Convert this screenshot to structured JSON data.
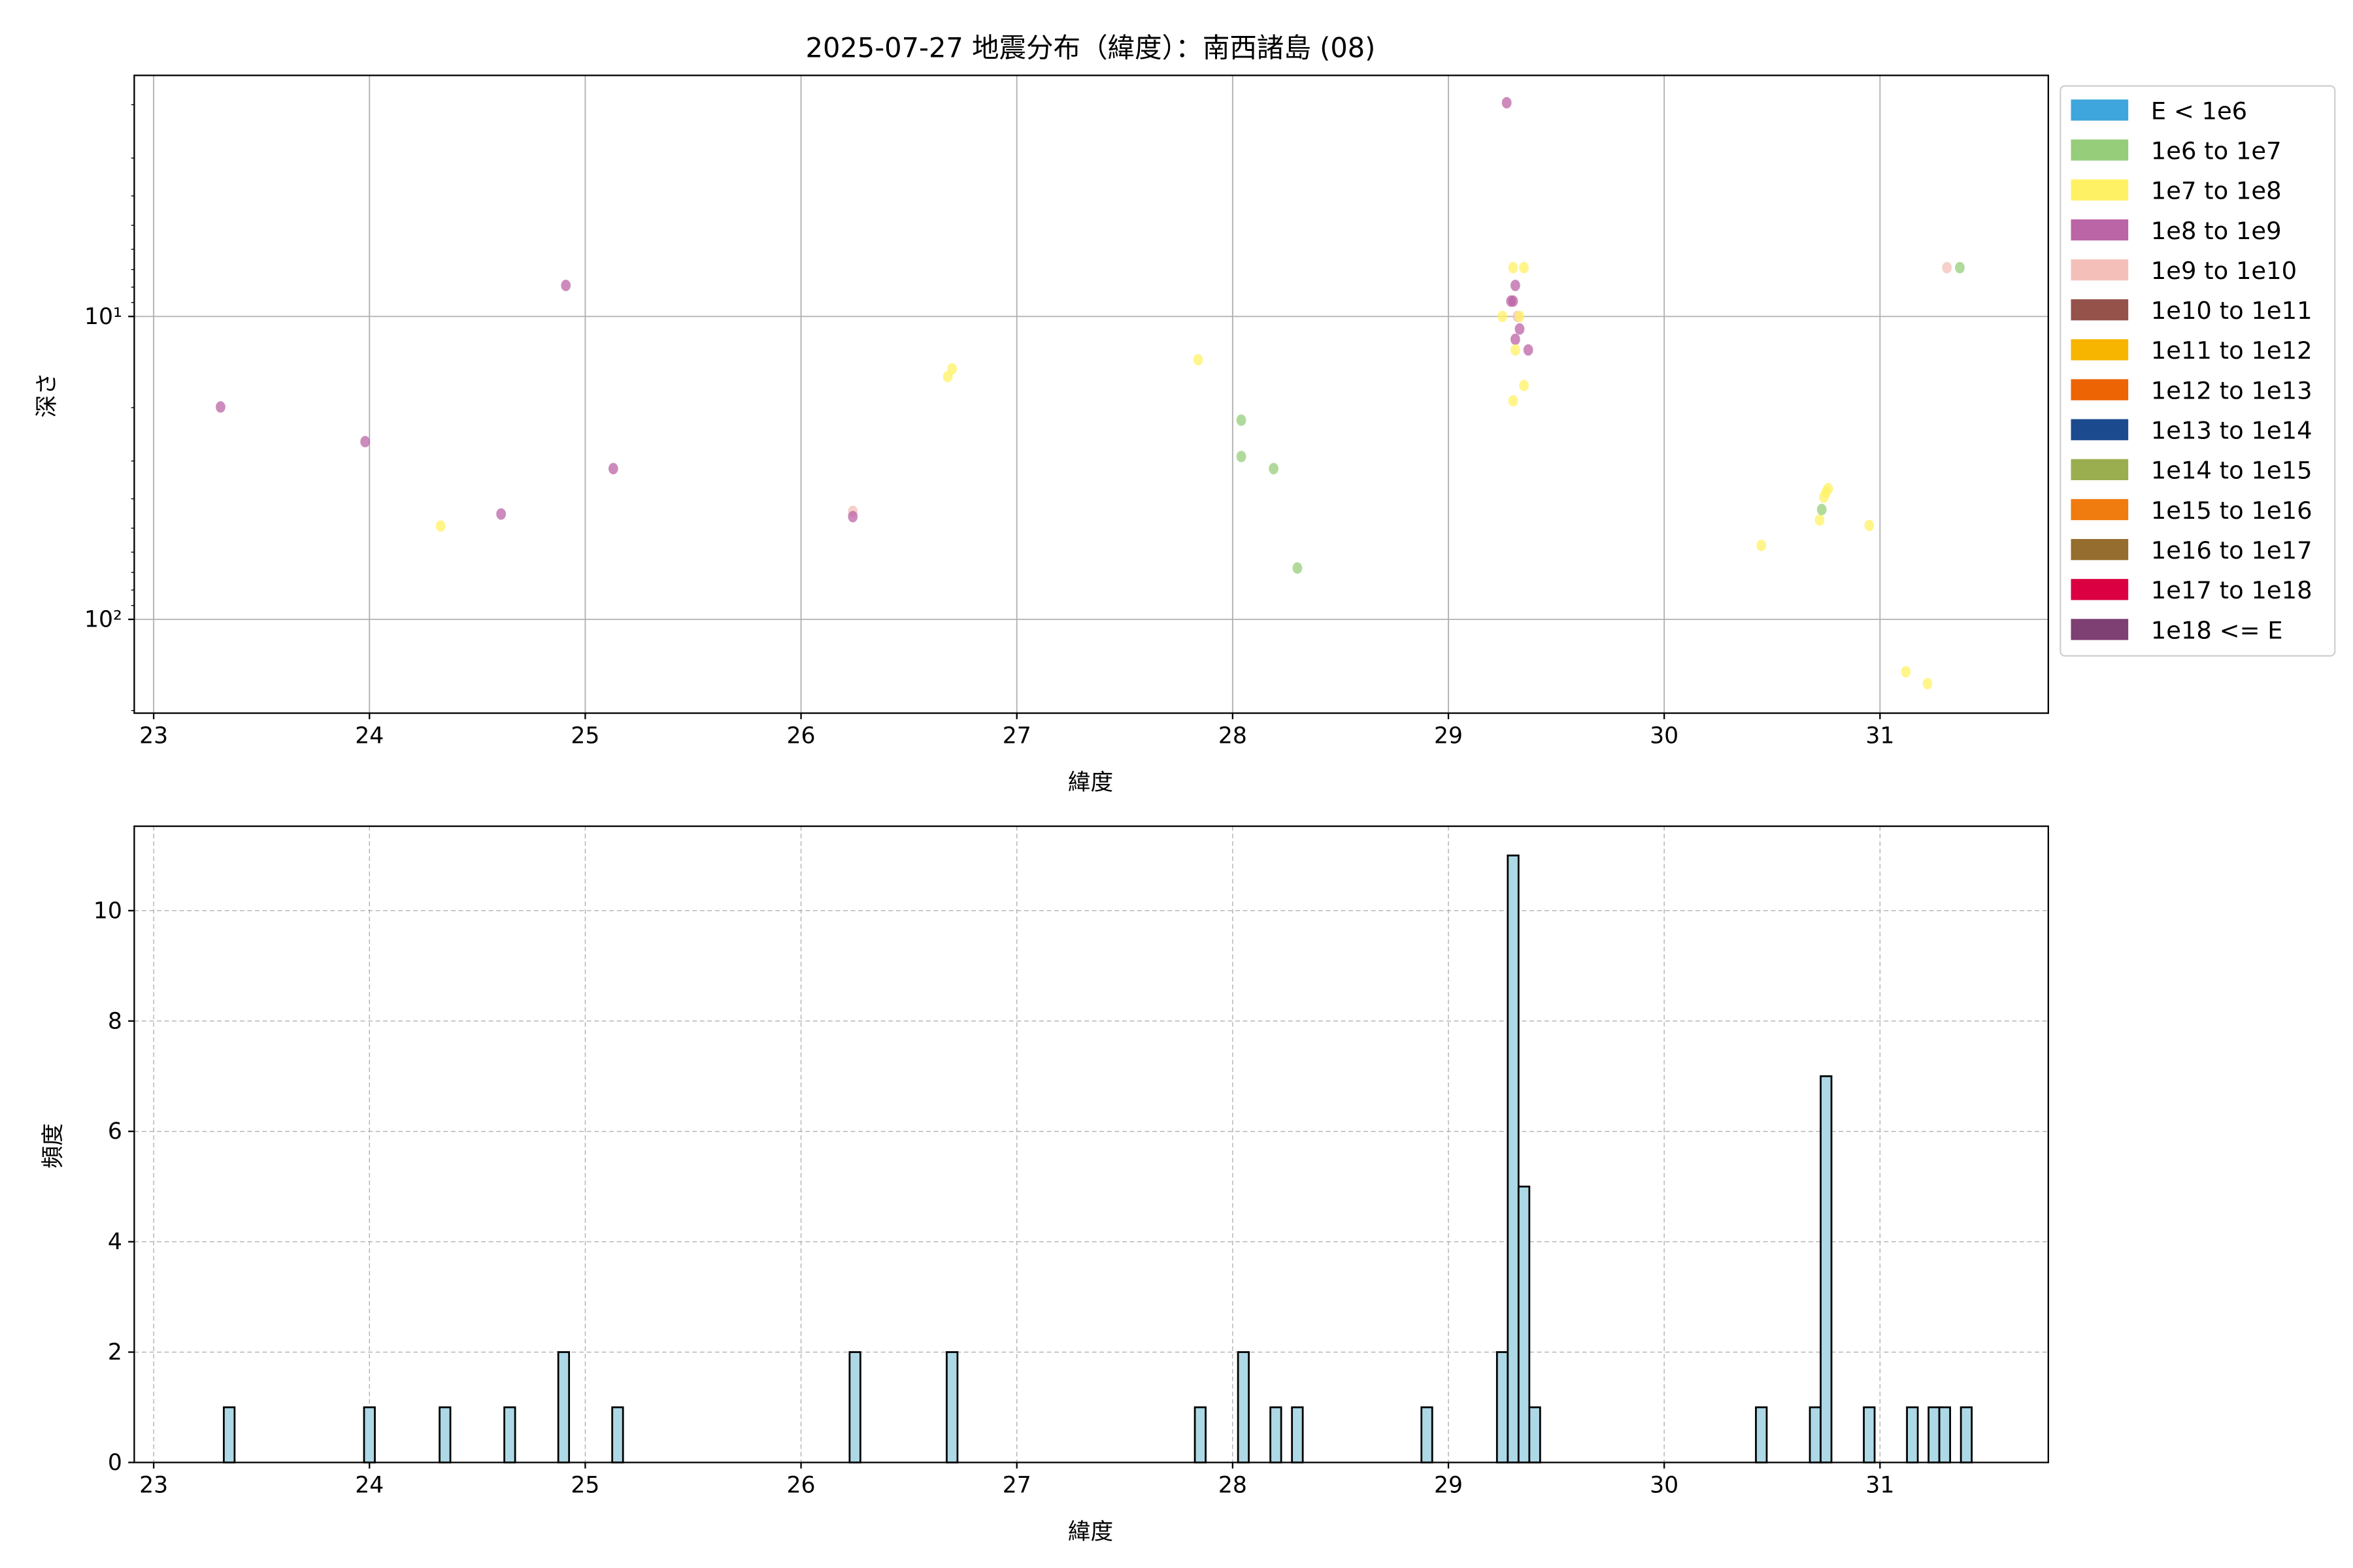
{
  "chart_data": [
    {
      "type": "scatter",
      "title": "2025-07-27 地震分布（緯度）：南西諸島 (08)",
      "xlabel": "緯度",
      "ylabel": "深さ",
      "xlim": [
        22.91,
        31.78
      ],
      "ylim": [
        204,
        1.6
      ],
      "yscale": "log",
      "y_inverted": true,
      "grid": true,
      "x_ticks": [
        23,
        24,
        25,
        26,
        27,
        28,
        29,
        30,
        31
      ],
      "y_ticks": [
        {
          "value": 10,
          "label": "10¹"
        },
        {
          "value": 100,
          "label": "10²"
        }
      ],
      "legend_position": "outside-right",
      "legend": [
        {
          "label": "E < 1e6",
          "color": "#3ea6dc"
        },
        {
          "label": "1e6 to 1e7",
          "color": "#95cd7a"
        },
        {
          "label": "1e7 to 1e8",
          "color": "#fff164"
        },
        {
          "label": "1e8 to 1e9",
          "color": "#bb64a6"
        },
        {
          "label": "1e9 to 1e10",
          "color": "#f4bfb9"
        },
        {
          "label": "1e10 to 1e11",
          "color": "#95524b"
        },
        {
          "label": "1e11 to 1e12",
          "color": "#f7b500"
        },
        {
          "label": "1e12 to 1e13",
          "color": "#ec6404"
        },
        {
          "label": "1e13 to 1e14",
          "color": "#1b4b8e"
        },
        {
          "label": "1e14 to 1e15",
          "color": "#9aae50"
        },
        {
          "label": "1e15 to 1e16",
          "color": "#f07b0f"
        },
        {
          "label": "1e16 to 1e17",
          "color": "#956d2e"
        },
        {
          "label": "1e17 to 1e18",
          "color": "#db0041"
        },
        {
          "label": "1e18 <= E",
          "color": "#7e3f72"
        }
      ],
      "points": [
        {
          "lat": 23.31,
          "depth": 19.9,
          "class": 3
        },
        {
          "lat": 23.98,
          "depth": 25.9,
          "class": 3
        },
        {
          "lat": 24.33,
          "depth": 49.2,
          "class": 2
        },
        {
          "lat": 24.61,
          "depth": 44.9,
          "class": 3
        },
        {
          "lat": 24.91,
          "depth": 7.9,
          "class": 3
        },
        {
          "lat": 25.13,
          "depth": 31.8,
          "class": 3
        },
        {
          "lat": 26.24,
          "depth": 44.0,
          "class": 4
        },
        {
          "lat": 26.24,
          "depth": 45.8,
          "class": 3
        },
        {
          "lat": 26.68,
          "depth": 15.8,
          "class": 2
        },
        {
          "lat": 26.7,
          "depth": 14.9,
          "class": 2
        },
        {
          "lat": 27.84,
          "depth": 13.9,
          "class": 2
        },
        {
          "lat": 28.04,
          "depth": 22.0,
          "class": 1
        },
        {
          "lat": 28.04,
          "depth": 29.0,
          "class": 1
        },
        {
          "lat": 28.19,
          "depth": 31.8,
          "class": 1
        },
        {
          "lat": 28.3,
          "depth": 67.7,
          "class": 1
        },
        {
          "lat": 29.27,
          "depth": 1.97,
          "class": 3
        },
        {
          "lat": 29.3,
          "depth": 6.9,
          "class": 2
        },
        {
          "lat": 29.35,
          "depth": 6.9,
          "class": 2
        },
        {
          "lat": 29.31,
          "depth": 7.9,
          "class": 3
        },
        {
          "lat": 29.29,
          "depth": 8.9,
          "class": 3
        },
        {
          "lat": 29.3,
          "depth": 8.9,
          "class": 3
        },
        {
          "lat": 29.25,
          "depth": 10.0,
          "class": 2
        },
        {
          "lat": 29.32,
          "depth": 10.0,
          "class": 4
        },
        {
          "lat": 29.33,
          "depth": 10.0,
          "class": 2
        },
        {
          "lat": 29.33,
          "depth": 11.0,
          "class": 3
        },
        {
          "lat": 29.31,
          "depth": 11.9,
          "class": 3
        },
        {
          "lat": 29.31,
          "depth": 12.9,
          "class": 2
        },
        {
          "lat": 29.37,
          "depth": 12.9,
          "class": 3
        },
        {
          "lat": 29.35,
          "depth": 16.9,
          "class": 2
        },
        {
          "lat": 29.3,
          "depth": 19.0,
          "class": 2
        },
        {
          "lat": 30.45,
          "depth": 57.0,
          "class": 2
        },
        {
          "lat": 30.72,
          "depth": 47.0,
          "class": 2
        },
        {
          "lat": 30.73,
          "depth": 43.4,
          "class": 1
        },
        {
          "lat": 30.74,
          "depth": 39.5,
          "class": 2
        },
        {
          "lat": 30.75,
          "depth": 38.0,
          "class": 2
        },
        {
          "lat": 30.76,
          "depth": 37.0,
          "class": 2
        },
        {
          "lat": 30.95,
          "depth": 49.0,
          "class": 2
        },
        {
          "lat": 31.12,
          "depth": 149,
          "class": 2
        },
        {
          "lat": 31.22,
          "depth": 163,
          "class": 2
        },
        {
          "lat": 31.31,
          "depth": 6.9,
          "class": 4
        },
        {
          "lat": 31.37,
          "depth": 6.9,
          "class": 1
        }
      ]
    },
    {
      "type": "bar",
      "subtype": "histogram",
      "xlabel": "緯度",
      "ylabel": "頻度",
      "xlim": [
        22.91,
        31.78
      ],
      "ylim": [
        0,
        11.53
      ],
      "grid": true,
      "grid_style": "dashed",
      "bar_color": "#add8e6",
      "edge_color": "#000000",
      "x_ticks": [
        23,
        24,
        25,
        26,
        27,
        28,
        29,
        30,
        31
      ],
      "y_ticks": [
        0,
        2,
        4,
        6,
        8,
        10
      ],
      "bin_width": 0.05,
      "bin_centers": [
        23.35,
        24.0,
        24.35,
        24.65,
        24.9,
        25.15,
        26.25,
        26.7,
        27.85,
        28.05,
        28.2,
        28.3,
        28.9,
        29.25,
        29.3,
        29.35,
        29.4,
        30.45,
        30.7,
        30.75,
        30.95,
        31.15,
        31.25,
        31.3,
        31.4
      ],
      "counts": [
        1,
        1,
        1,
        1,
        2,
        1,
        2,
        2,
        1,
        2,
        1,
        1,
        1,
        2,
        11,
        5,
        1,
        1,
        1,
        7,
        1,
        1,
        1,
        1,
        1
      ]
    }
  ]
}
